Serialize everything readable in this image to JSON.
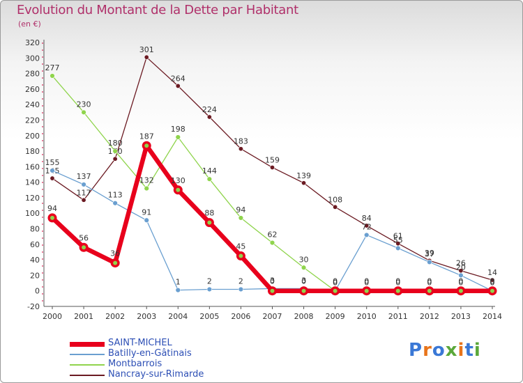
{
  "chart_data": {
    "type": "line",
    "title": "Evolution du Montant de la Dette par Habitant",
    "subtitle": "(en €)",
    "x": [
      "2000",
      "2001",
      "2002",
      "2003",
      "2004",
      "2005",
      "2006",
      "2007",
      "2008",
      "2009",
      "2010",
      "2011",
      "2012",
      "2013",
      "2014"
    ],
    "ylim": [
      -20,
      320
    ],
    "yticks": [
      -20,
      0,
      20,
      40,
      60,
      80,
      100,
      120,
      140,
      160,
      180,
      200,
      220,
      240,
      260,
      280,
      300,
      320
    ],
    "grid": false,
    "legend_position": "bottom-left",
    "series": [
      {
        "name": "Nancray-sur-Rimarde",
        "color": "#6b1a22",
        "values": [
          145,
          117,
          170,
          301,
          264,
          224,
          183,
          159,
          139,
          108,
          84,
          61,
          39,
          26,
          14
        ]
      },
      {
        "name": "Montbarrois",
        "color": "#8fd44c",
        "values": [
          277,
          230,
          180,
          132,
          198,
          144,
          94,
          62,
          30,
          0,
          0,
          0,
          0,
          0,
          0
        ]
      },
      {
        "name": "Batilly-en-Gâtinais",
        "color": "#6a9fd0",
        "values": [
          155,
          137,
          113,
          91,
          1,
          2,
          2,
          3,
          3,
          0,
          72,
          55,
          37,
          20,
          0
        ]
      },
      {
        "name": "SAINT-MICHEL",
        "color": "#e8001c",
        "values": [
          94,
          56,
          36,
          187,
          130,
          88,
          45,
          0,
          0,
          0,
          0,
          0,
          0,
          0,
          0
        ]
      }
    ],
    "data_labels": [
      [
        "145",
        "117",
        "170",
        "301",
        "264",
        "224",
        "183",
        "159",
        "139",
        "108",
        "84",
        "61",
        "39",
        "26",
        "14"
      ],
      [
        "277",
        "230",
        "180",
        "132",
        "198",
        "144",
        "94",
        "62",
        "30",
        "0",
        "0",
        "0",
        "0",
        "0",
        "0"
      ],
      [
        "155",
        "137",
        "113",
        "91",
        "1",
        "2",
        "2",
        "3",
        "3",
        "0",
        "72",
        "55",
        "37",
        "20",
        "0"
      ],
      [
        "94",
        "56",
        "36",
        "187",
        "130",
        "88",
        "45",
        "0",
        "0",
        "0",
        "0",
        "0",
        "0",
        "0",
        "0"
      ]
    ]
  },
  "legend": {
    "items": [
      {
        "label": "SAINT-MICHEL",
        "color": "#e8001c"
      },
      {
        "label": "Batilly-en-Gâtinais",
        "color": "#6a9fd0"
      },
      {
        "label": "Montbarrois",
        "color": "#8fd44c"
      },
      {
        "label": "Nancray-sur-Rimarde",
        "color": "#6b1a22"
      }
    ]
  },
  "brand": {
    "letters": [
      "P",
      "r",
      "o",
      "x",
      "i",
      "t",
      "i"
    ],
    "colors": [
      "#3a78d6",
      "#e8741a",
      "#3a78d6",
      "#5aa83a",
      "#e8741a",
      "#3a78d6",
      "#5aa83a"
    ]
  }
}
